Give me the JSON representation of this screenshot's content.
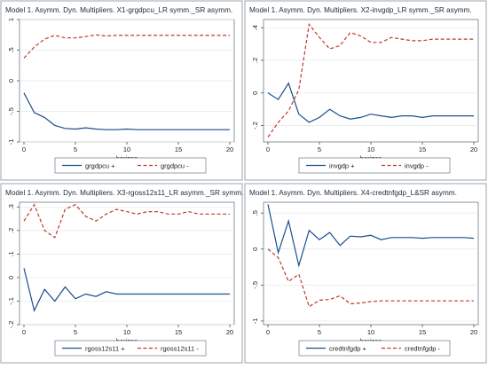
{
  "chart_data": [
    {
      "type": "line",
      "title": "Model 1. Asymm. Dyn. Multipliers. X1-grgdpcu_LR symm._SR asymm.",
      "xlabel": "horizon",
      "ylabel": "",
      "xlim": [
        0,
        20
      ],
      "ylim": [
        -1,
        1
      ],
      "xticks": [
        0,
        5,
        10,
        15,
        20
      ],
      "yticks": [
        -1,
        -0.5,
        0,
        0.5,
        1
      ],
      "ytick_labels": [
        "-1",
        "-.5",
        "0",
        ".5",
        "1"
      ],
      "legend_position": "bottom",
      "x": [
        0,
        1,
        2,
        3,
        4,
        5,
        6,
        7,
        8,
        9,
        10,
        11,
        12,
        13,
        14,
        15,
        16,
        17,
        18,
        19,
        20
      ],
      "series": [
        {
          "name": "grgdpcu +",
          "style": "solid",
          "color": "#1a4f8b",
          "values": [
            -0.2,
            -0.52,
            -0.6,
            -0.73,
            -0.78,
            -0.79,
            -0.77,
            -0.79,
            -0.8,
            -0.8,
            -0.79,
            -0.8,
            -0.8,
            -0.8,
            -0.8,
            -0.8,
            -0.8,
            -0.8,
            -0.8,
            -0.8,
            -0.8
          ]
        },
        {
          "name": "grgdpcu -",
          "style": "dashed",
          "color": "#c0392b",
          "values": [
            0.37,
            0.55,
            0.68,
            0.74,
            0.7,
            0.7,
            0.72,
            0.75,
            0.73,
            0.74,
            0.74,
            0.74,
            0.74,
            0.74,
            0.74,
            0.74,
            0.74,
            0.74,
            0.74,
            0.74,
            0.74
          ]
        }
      ]
    },
    {
      "type": "line",
      "title": "Model 1. Asymm. Dyn. Multipliers. X2-invgdp_LR symm._SR asymm.",
      "xlabel": "horizon",
      "ylabel": "",
      "xlim": [
        0,
        20
      ],
      "ylim": [
        -0.3,
        0.45
      ],
      "xticks": [
        0,
        5,
        10,
        15,
        20
      ],
      "yticks": [
        -0.2,
        0,
        0.2,
        0.4
      ],
      "ytick_labels": [
        "-.2",
        "0",
        ".2",
        ".4"
      ],
      "legend_position": "bottom",
      "x": [
        0,
        1,
        2,
        3,
        4,
        5,
        6,
        7,
        8,
        9,
        10,
        11,
        12,
        13,
        14,
        15,
        16,
        17,
        18,
        19,
        20
      ],
      "series": [
        {
          "name": "invgdp +",
          "style": "solid",
          "color": "#1a4f8b",
          "values": [
            0.0,
            -0.04,
            0.06,
            -0.13,
            -0.18,
            -0.15,
            -0.1,
            -0.14,
            -0.16,
            -0.15,
            -0.13,
            -0.14,
            -0.15,
            -0.14,
            -0.14,
            -0.15,
            -0.14,
            -0.14,
            -0.14,
            -0.14,
            -0.14
          ]
        },
        {
          "name": "invgdp -",
          "style": "dashed",
          "color": "#c0392b",
          "values": [
            -0.27,
            -0.18,
            -0.11,
            0.02,
            0.42,
            0.34,
            0.27,
            0.29,
            0.37,
            0.35,
            0.31,
            0.31,
            0.34,
            0.33,
            0.32,
            0.32,
            0.33,
            0.33,
            0.33,
            0.33,
            0.33
          ]
        }
      ]
    },
    {
      "type": "line",
      "title": "Model 1. Asymm. Dyn. Multipliers. X3-rgoss12s11_LR asymm._SR symm.",
      "xlabel": "horizon",
      "ylabel": "",
      "xlim": [
        0,
        20
      ],
      "ylim": [
        -0.2,
        0.32
      ],
      "xticks": [
        0,
        5,
        10,
        15,
        20
      ],
      "yticks": [
        -0.2,
        -0.1,
        0,
        0.1,
        0.2,
        0.3
      ],
      "ytick_labels": [
        "-.2",
        "-.1",
        "0",
        ".1",
        ".2",
        ".3"
      ],
      "legend_position": "bottom",
      "x": [
        0,
        1,
        2,
        3,
        4,
        5,
        6,
        7,
        8,
        9,
        10,
        11,
        12,
        13,
        14,
        15,
        16,
        17,
        18,
        19,
        20
      ],
      "series": [
        {
          "name": "rgoss12s11 +",
          "style": "solid",
          "color": "#1a4f8b",
          "values": [
            0.04,
            -0.14,
            -0.05,
            -0.1,
            -0.04,
            -0.09,
            -0.07,
            -0.08,
            -0.06,
            -0.07,
            -0.07,
            -0.07,
            -0.07,
            -0.07,
            -0.07,
            -0.07,
            -0.07,
            -0.07,
            -0.07,
            -0.07,
            -0.07
          ]
        },
        {
          "name": "rgoss12s11 -",
          "style": "dashed",
          "color": "#c0392b",
          "values": [
            0.24,
            0.31,
            0.2,
            0.17,
            0.29,
            0.31,
            0.26,
            0.24,
            0.27,
            0.29,
            0.28,
            0.27,
            0.28,
            0.28,
            0.27,
            0.27,
            0.28,
            0.27,
            0.27,
            0.27,
            0.27
          ]
        }
      ]
    },
    {
      "type": "line",
      "title": "Model 1. Asymm. Dyn. Multipliers. X4-credtnfgdp_L&SR asymm.",
      "xlabel": "horizon",
      "ylabel": "",
      "xlim": [
        0,
        20
      ],
      "ylim": [
        -1.05,
        0.65
      ],
      "xticks": [
        0,
        5,
        10,
        15,
        20
      ],
      "yticks": [
        -1,
        -0.5,
        0,
        0.5
      ],
      "ytick_labels": [
        "-1",
        "-.5",
        "0",
        ".5"
      ],
      "legend_position": "bottom",
      "x": [
        0,
        1,
        2,
        3,
        4,
        5,
        6,
        7,
        8,
        9,
        10,
        11,
        12,
        13,
        14,
        15,
        16,
        17,
        18,
        19,
        20
      ],
      "series": [
        {
          "name": "credtnfgdp +",
          "style": "solid",
          "color": "#1a4f8b",
          "values": [
            0.62,
            -0.05,
            0.39,
            -0.23,
            0.26,
            0.13,
            0.23,
            0.05,
            0.18,
            0.17,
            0.19,
            0.13,
            0.16,
            0.16,
            0.16,
            0.15,
            0.16,
            0.16,
            0.16,
            0.16,
            0.15
          ]
        },
        {
          "name": "credtnfgdp -",
          "style": "dashed",
          "color": "#c0392b",
          "values": [
            0.0,
            -0.12,
            -0.45,
            -0.35,
            -0.8,
            -0.71,
            -0.7,
            -0.65,
            -0.76,
            -0.75,
            -0.73,
            -0.72,
            -0.72,
            -0.72,
            -0.72,
            -0.72,
            -0.72,
            -0.72,
            -0.72,
            -0.72,
            -0.72
          ]
        }
      ]
    }
  ]
}
